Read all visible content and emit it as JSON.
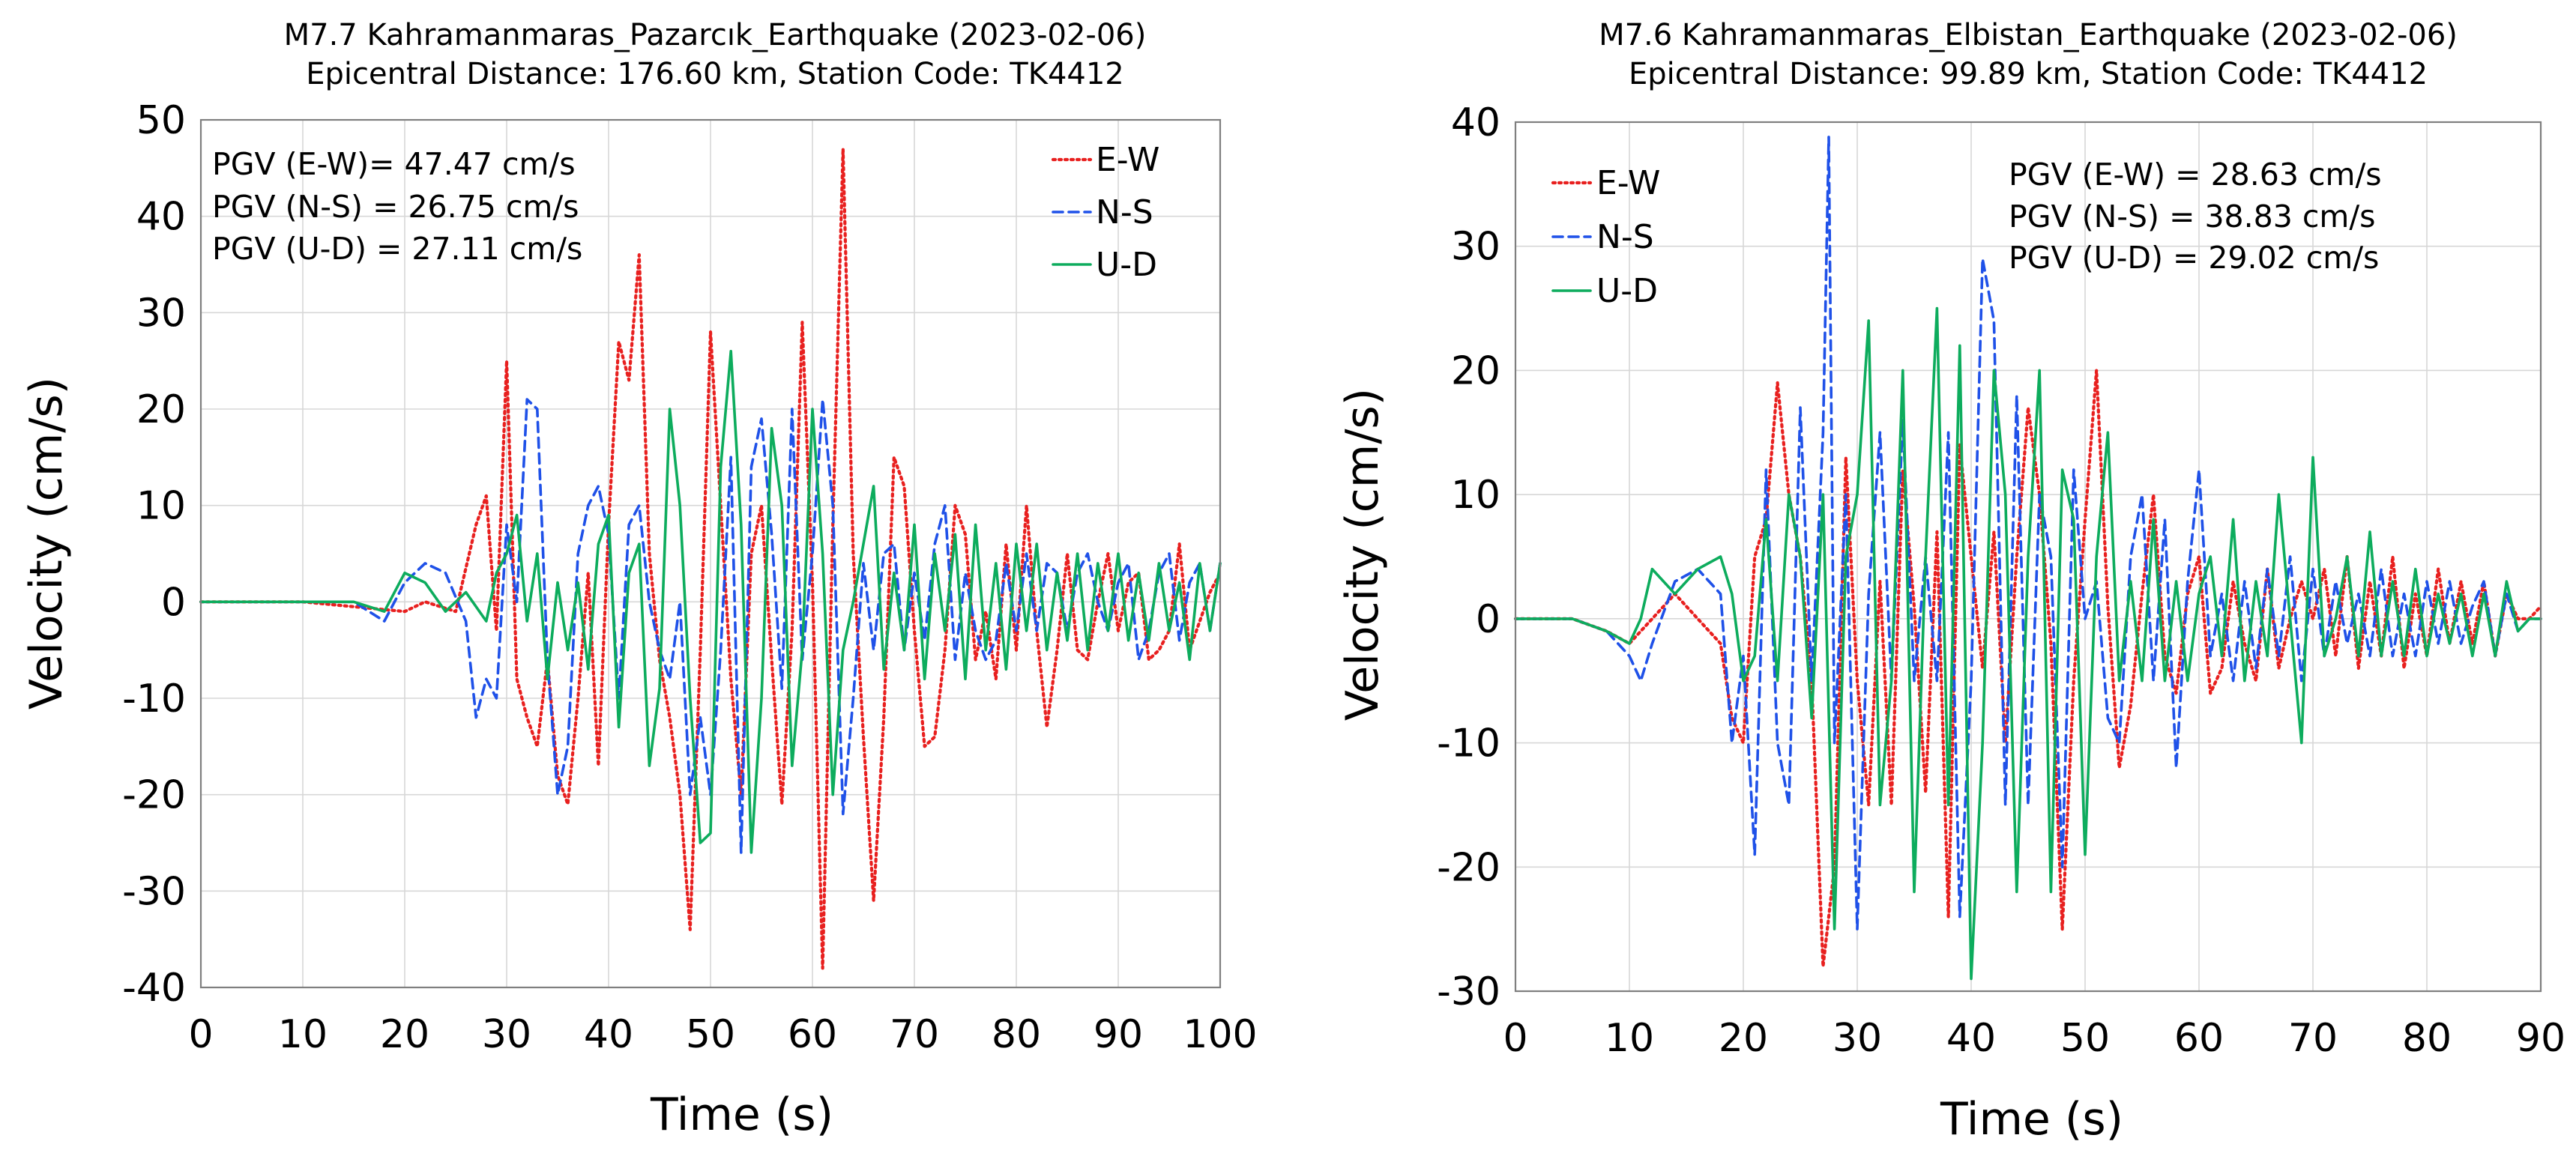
{
  "chart_data": [
    {
      "type": "line",
      "title": "M7.7 Kahramanmaras_Pazarcık_Earthquake (2023-02-06)",
      "subtitle": "Epicentral Distance: 176.60 km, Station Code: TK4412",
      "xlabel": "Time (s)",
      "ylabel": "Velocity (cm/s)",
      "xlim": [
        0,
        100
      ],
      "ylim": [
        -40,
        50
      ],
      "xticks": [
        0,
        10,
        20,
        30,
        40,
        50,
        60,
        70,
        80,
        90,
        100
      ],
      "yticks": [
        -40,
        -30,
        -20,
        -10,
        0,
        10,
        20,
        30,
        40,
        50
      ],
      "grid": true,
      "legend_position": "top-right",
      "annotations": [
        "PGV (E-W)= 47.47 cm/s",
        "PGV (N-S) = 26.75 cm/s",
        "PGV (U-D) = 27.11 cm/s"
      ],
      "series": [
        {
          "name": "E-W",
          "color": "#e8201f",
          "style": "dotted",
          "x": [
            0,
            10,
            15,
            20,
            22,
            25,
            27,
            28,
            29,
            30,
            31,
            32,
            33,
            34,
            35,
            36,
            37,
            38,
            39,
            40,
            41,
            42,
            43,
            44,
            45,
            46,
            47,
            48,
            49,
            50,
            51,
            52,
            53,
            54,
            55,
            56,
            57,
            58,
            59,
            60,
            61,
            62,
            63,
            64,
            65,
            66,
            67,
            68,
            69,
            70,
            71,
            72,
            73,
            74,
            75,
            76,
            77,
            78,
            79,
            80,
            81,
            82,
            83,
            84,
            85,
            86,
            87,
            88,
            89,
            90,
            91,
            92,
            93,
            94,
            95,
            96,
            97,
            98,
            99,
            100
          ],
          "y": [
            0,
            0,
            -0.5,
            -1,
            0,
            -1,
            8,
            11,
            -3,
            25,
            -8,
            -12,
            -15,
            -6,
            -18,
            -21,
            -10,
            3,
            -17,
            8,
            27,
            23,
            36,
            5,
            -6,
            -12,
            -20,
            -34,
            -5,
            28,
            10,
            -8,
            -20,
            5,
            10,
            -6,
            -21,
            -3,
            29,
            2,
            -38,
            8,
            47,
            5,
            -14,
            -31,
            -12,
            15,
            12,
            -3,
            -15,
            -14,
            -5,
            10,
            7,
            -6,
            -1,
            -8,
            6,
            -5,
            10,
            -3,
            -13,
            -5,
            5,
            -5,
            -6,
            0,
            5,
            -3,
            2,
            3,
            -6,
            -5,
            -3,
            6,
            -5,
            -2,
            1,
            3
          ]
        },
        {
          "name": "N-S",
          "color": "#1f51e8",
          "style": "dashed",
          "x": [
            0,
            10,
            15,
            18,
            20,
            22,
            24,
            26,
            27,
            28,
            29,
            30,
            31,
            32,
            33,
            34,
            35,
            36,
            37,
            38,
            39,
            40,
            41,
            42,
            43,
            44,
            45,
            46,
            47,
            48,
            49,
            50,
            51,
            52,
            53,
            54,
            55,
            56,
            57,
            58,
            59,
            60,
            61,
            62,
            63,
            64,
            65,
            66,
            67,
            68,
            69,
            70,
            71,
            72,
            73,
            74,
            75,
            76,
            77,
            78,
            79,
            80,
            81,
            82,
            83,
            84,
            85,
            86,
            87,
            88,
            89,
            90,
            91,
            92,
            93,
            94,
            95,
            96,
            97,
            98,
            99,
            100
          ],
          "y": [
            0,
            0,
            0,
            -2,
            2,
            4,
            3,
            -2,
            -12,
            -8,
            -10,
            8,
            0,
            21,
            20,
            -6,
            -20,
            -15,
            5,
            10,
            12,
            7,
            -10,
            8,
            10,
            0,
            -5,
            -8,
            0,
            -20,
            -12,
            -20,
            -5,
            15,
            -26,
            14,
            19,
            7,
            -9,
            20,
            -6,
            5,
            21,
            10,
            -22,
            -10,
            4,
            -5,
            5,
            6,
            -5,
            3,
            -4,
            6,
            10,
            -6,
            3,
            -3,
            -6,
            -4,
            4,
            -3,
            5,
            -3,
            4,
            3,
            -3,
            3,
            5,
            0,
            -3,
            2,
            4,
            -6,
            -3,
            3,
            5,
            -4,
            2,
            4,
            -3,
            4
          ]
        },
        {
          "name": "U-D",
          "color": "#0dac5d",
          "style": "solid",
          "x": [
            0,
            10,
            15,
            18,
            20,
            22,
            24,
            26,
            28,
            29,
            30,
            31,
            32,
            33,
            34,
            35,
            36,
            37,
            38,
            39,
            40,
            41,
            42,
            43,
            44,
            45,
            46,
            47,
            48,
            49,
            50,
            51,
            52,
            53,
            54,
            55,
            56,
            57,
            58,
            59,
            60,
            61,
            62,
            63,
            64,
            65,
            66,
            67,
            68,
            69,
            70,
            71,
            72,
            73,
            74,
            75,
            76,
            77,
            78,
            79,
            80,
            81,
            82,
            83,
            84,
            85,
            86,
            87,
            88,
            89,
            90,
            91,
            92,
            93,
            94,
            95,
            96,
            97,
            98,
            99,
            100
          ],
          "y": [
            0,
            0,
            0,
            -1,
            3,
            2,
            -1,
            1,
            -2,
            3,
            5,
            9,
            -2,
            5,
            -8,
            2,
            -5,
            2,
            -7,
            6,
            9,
            -13,
            3,
            6,
            -17,
            -9,
            20,
            10,
            -10,
            -25,
            -24,
            14,
            26,
            8,
            -26,
            -10,
            18,
            10,
            -17,
            -5,
            20,
            5,
            -20,
            -5,
            0,
            6,
            12,
            -7,
            3,
            -5,
            8,
            -8,
            5,
            -3,
            7,
            -8,
            8,
            -5,
            4,
            -7,
            6,
            -3,
            6,
            -5,
            3,
            -4,
            5,
            -5,
            4,
            -3,
            5,
            -4,
            3,
            -4,
            4,
            -3,
            2,
            -6,
            4,
            -3,
            4
          ]
        }
      ]
    },
    {
      "type": "line",
      "title": "M7.6 Kahramanmaras_Elbistan_Earthquake (2023-02-06)",
      "subtitle": "Epicentral Distance: 99.89 km, Station Code: TK4412",
      "xlabel": "Time (s)",
      "ylabel": "Velocity (cm/s)",
      "xlim": [
        0,
        90
      ],
      "ylim": [
        -30,
        40
      ],
      "xticks": [
        0,
        10,
        20,
        30,
        40,
        50,
        60,
        70,
        80,
        90
      ],
      "yticks": [
        -30,
        -20,
        -10,
        0,
        10,
        20,
        30,
        40
      ],
      "grid": true,
      "legend_position": "top-left",
      "annotations": [
        "PGV (E-W) = 28.63 cm/s",
        "PGV (N-S) = 38.83 cm/s",
        "PGV (U-D) = 29.02 cm/s"
      ],
      "series": [
        {
          "name": "E-W",
          "color": "#e8201f",
          "style": "dotted",
          "x": [
            0,
            5,
            8,
            10,
            12,
            14,
            16,
            18,
            19,
            20,
            21,
            22,
            23,
            24,
            25,
            26,
            27,
            28,
            29,
            30,
            31,
            32,
            33,
            34,
            35,
            36,
            37,
            38,
            39,
            40,
            41,
            42,
            43,
            44,
            45,
            46,
            47,
            48,
            49,
            50,
            51,
            52,
            53,
            54,
            55,
            56,
            57,
            58,
            59,
            60,
            61,
            62,
            63,
            64,
            65,
            66,
            67,
            68,
            69,
            70,
            71,
            72,
            73,
            74,
            75,
            76,
            77,
            78,
            79,
            80,
            81,
            82,
            83,
            84,
            85,
            86,
            87,
            88,
            89,
            90
          ],
          "y": [
            0,
            0,
            -1,
            -2,
            0,
            2,
            0,
            -2,
            -8,
            -10,
            5,
            8,
            19,
            10,
            5,
            -5,
            -28,
            -20,
            13,
            -5,
            -15,
            3,
            -15,
            12,
            1,
            -14,
            7,
            -24,
            14,
            5,
            -4,
            7,
            -10,
            5,
            17,
            10,
            -2,
            -25,
            -5,
            8,
            20,
            1,
            -12,
            -7,
            2,
            10,
            -3,
            -6,
            2,
            5,
            -6,
            -4,
            3,
            -2,
            -5,
            4,
            -4,
            0,
            3,
            0,
            4,
            -3,
            5,
            -4,
            3,
            -3,
            5,
            -4,
            2,
            -3,
            4,
            -2,
            3,
            -2,
            3,
            -3,
            2,
            0,
            0,
            1
          ]
        },
        {
          "name": "N-S",
          "color": "#1f51e8",
          "style": "dashed",
          "x": [
            0,
            5,
            8,
            10,
            11,
            12,
            14,
            16,
            18,
            19,
            20,
            21,
            22,
            23,
            24,
            25,
            26,
            27,
            27.5,
            28,
            29,
            30,
            31,
            32,
            33,
            34,
            35,
            36,
            37,
            38,
            39,
            40,
            41,
            42,
            43,
            44,
            45,
            46,
            47,
            48,
            49,
            50,
            51,
            52,
            53,
            54,
            55,
            56,
            57,
            58,
            59,
            60,
            61,
            62,
            63,
            64,
            65,
            66,
            67,
            68,
            69,
            70,
            71,
            72,
            73,
            74,
            75,
            76,
            77,
            78,
            79,
            80,
            81,
            82,
            83,
            84,
            85,
            86,
            87,
            88,
            89,
            90
          ],
          "y": [
            0,
            0,
            -1,
            -3,
            -5,
            -2,
            3,
            4,
            2,
            -10,
            -3,
            -19,
            12,
            -10,
            -15,
            17,
            -5,
            15,
            38.8,
            -10,
            10,
            -25,
            2,
            15,
            -5,
            16,
            -5,
            5,
            -5,
            15,
            -24,
            -5,
            29,
            24,
            -15,
            18,
            -15,
            10,
            5,
            -20,
            12,
            0,
            3,
            -8,
            -10,
            5,
            10,
            -5,
            8,
            -12,
            3,
            12,
            -3,
            2,
            -5,
            3,
            -4,
            4,
            -3,
            5,
            -5,
            4,
            -3,
            3,
            -2,
            2,
            -3,
            4,
            -3,
            2,
            -3,
            3,
            -2,
            3,
            -2,
            1,
            3,
            -3,
            2,
            -1,
            0,
            0
          ]
        },
        {
          "name": "U-D",
          "color": "#0dac5d",
          "style": "solid",
          "x": [
            0,
            5,
            8,
            10,
            11,
            12,
            14,
            16,
            18,
            19,
            20,
            21,
            22,
            23,
            24,
            25,
            26,
            27,
            28,
            29,
            30,
            31,
            32,
            33,
            34,
            35,
            36,
            37,
            38,
            39,
            40,
            41,
            42,
            43,
            44,
            45,
            46,
            47,
            48,
            49,
            50,
            51,
            52,
            53,
            54,
            55,
            56,
            57,
            58,
            59,
            60,
            61,
            62,
            63,
            64,
            65,
            66,
            67,
            68,
            69,
            70,
            71,
            72,
            73,
            74,
            75,
            76,
            77,
            78,
            79,
            80,
            81,
            82,
            83,
            84,
            85,
            86,
            87,
            88,
            89,
            90
          ],
          "y": [
            0,
            0,
            -1,
            -2,
            0,
            4,
            2,
            4,
            5,
            2,
            -5,
            -3,
            8,
            -5,
            10,
            5,
            -8,
            10,
            -25,
            5,
            10,
            24,
            -15,
            -5,
            20,
            -22,
            5,
            25,
            -15,
            22,
            -29,
            -10,
            20,
            10,
            -22,
            5,
            20,
            -22,
            12,
            8,
            -19,
            5,
            15,
            -5,
            3,
            -5,
            8,
            -5,
            3,
            -5,
            2,
            5,
            -3,
            8,
            -5,
            3,
            -3,
            10,
            0,
            -10,
            13,
            -3,
            0,
            5,
            -3,
            7,
            -3,
            3,
            -3,
            4,
            -3,
            2,
            -2,
            2,
            -3,
            2,
            -3,
            3,
            -1,
            0,
            0
          ]
        }
      ]
    }
  ]
}
